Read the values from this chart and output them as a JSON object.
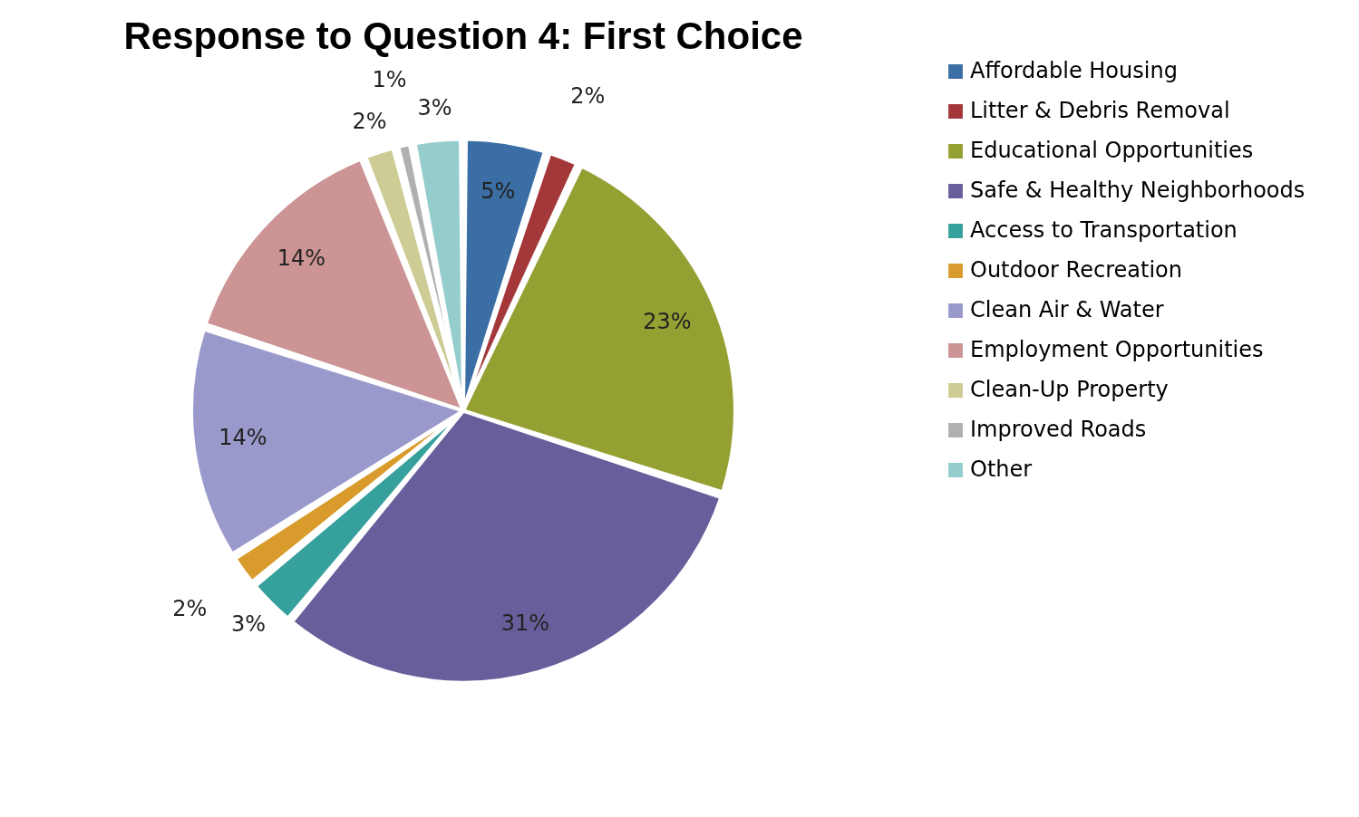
{
  "chart_data": {
    "type": "pie",
    "title": "Response to Question 4: First Choice",
    "categories": [
      "Affordable Housing",
      "Litter & Debris Removal",
      "Educational Opportunities",
      "Safe & Healthy Neighborhoods",
      "Access to Transportation",
      "Outdoor Recreation",
      "Clean Air & Water",
      "Employment Opportunities",
      "Clean-Up Property",
      "Improved Roads",
      "Other"
    ],
    "values": [
      5,
      2,
      23,
      31,
      3,
      2,
      14,
      14,
      2,
      1,
      3
    ],
    "value_labels": [
      "5%",
      "2%",
      "23%",
      "31%",
      "3%",
      "2%",
      "14%",
      "14%",
      "2%",
      "1%",
      "3%"
    ],
    "colors": [
      "#3a6ea5",
      "#a4373a",
      "#95a033",
      "#675f9c",
      "#36a09c",
      "#d99b2b",
      "#9a99cc",
      "#cc9494",
      "#cccc94",
      "#b0b0b0",
      "#95cccc"
    ],
    "legend": "right"
  }
}
